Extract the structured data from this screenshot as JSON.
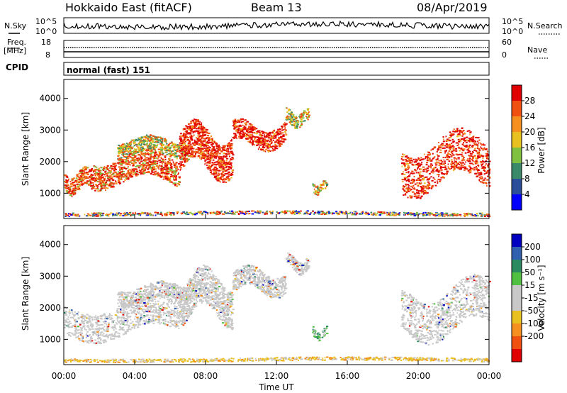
{
  "header": {
    "station_title": "Hokkaido East (fitACF)",
    "beam_label": "Beam 13",
    "date_label": "08/Apr/2019"
  },
  "summary_panels": {
    "nsky_label": "N.Sky",
    "nsky_ticks": [
      "10^5",
      "10^0"
    ],
    "nsearch_label": "N.Search",
    "nsearch_ticks": [
      "10^5",
      "10^0"
    ],
    "freq_label": "Freq.",
    "freq_unit": "[MHz]",
    "freq_ticks": [
      "18",
      "8"
    ],
    "nave_label": "Nave",
    "nave_ticks": [
      "60",
      "0"
    ],
    "cpid_label": "CPID",
    "cpid_value": "normal (fast) 151"
  },
  "colors": {
    "power_scale": [
      "#0000ff",
      "#2a4e9a",
      "#3a8a6a",
      "#80c040",
      "#e8c020",
      "#f59020",
      "#f05010",
      "#e00000"
    ],
    "velocity_scale": [
      "#0000c0",
      "#3060b0",
      "#2a8a60",
      "#50c040",
      "#c8c8c8",
      "#c8c8c8",
      "#e8c020",
      "#f59020",
      "#f05010",
      "#e00000"
    ]
  },
  "chart_data": [
    {
      "type": "heatmap",
      "title": "",
      "xlabel": "Time UT",
      "ylabel": "Slant Range [km]",
      "x_ticks": [
        "00:00",
        "04:00",
        "08:00",
        "12:00",
        "16:00",
        "20:00",
        "00:00"
      ],
      "y_ticks": [
        "1000",
        "2000",
        "3000",
        "4000"
      ],
      "xlim_hours": [
        0,
        24
      ],
      "ylim_km": [
        200,
        4600
      ],
      "colorbar": {
        "label": "Power [dB]",
        "ticks": [
          "4",
          "8",
          "12",
          "16",
          "20",
          "24",
          "28"
        ],
        "range": [
          0,
          32
        ]
      },
      "echo_regions": [
        {
          "t0": 0.0,
          "t1": 1.5,
          "r0": 1000,
          "r1": 1800,
          "level": "high"
        },
        {
          "t0": 1.5,
          "t1": 6.5,
          "r0": 1200,
          "r1": 2300,
          "level": "high"
        },
        {
          "t0": 3.0,
          "t1": 7.0,
          "r0": 2100,
          "r1": 2800,
          "level": "mid"
        },
        {
          "t0": 6.5,
          "t1": 9.5,
          "r0": 1500,
          "r1": 3200,
          "level": "very-high"
        },
        {
          "t0": 9.5,
          "t1": 12.5,
          "r0": 2400,
          "r1": 3300,
          "level": "very-high"
        },
        {
          "t0": 12.5,
          "t1": 13.8,
          "r0": 3100,
          "r1": 3700,
          "level": "mid"
        },
        {
          "t0": 14.0,
          "t1": 14.8,
          "r0": 1000,
          "r1": 1400,
          "level": "mid"
        },
        {
          "t0": 19.0,
          "t1": 24.0,
          "r0": 1000,
          "r1": 2900,
          "level": "very-high"
        },
        {
          "t0": 0.0,
          "t1": 24.0,
          "r0": 300,
          "r1": 450,
          "level": "low"
        }
      ]
    },
    {
      "type": "heatmap",
      "title": "",
      "xlabel": "Time UT",
      "ylabel": "Slant Range [km]",
      "x_ticks": [
        "00:00",
        "04:00",
        "08:00",
        "12:00",
        "16:00",
        "20:00",
        "00:00"
      ],
      "y_ticks": [
        "1000",
        "2000",
        "3000",
        "4000"
      ],
      "xlim_hours": [
        0,
        24
      ],
      "ylim_km": [
        200,
        4600
      ],
      "colorbar": {
        "label": "Velocity [m s⁻¹]",
        "ticks": [
          "200",
          "100",
          "50",
          "15",
          "-15",
          "-50",
          "-100",
          "-200"
        ],
        "range": [
          -250,
          250
        ]
      },
      "echo_regions": [
        {
          "t0": 0.0,
          "t1": 6.5,
          "r0": 1000,
          "r1": 2300,
          "level": "near-zero"
        },
        {
          "t0": 3.0,
          "t1": 7.0,
          "r0": 2100,
          "r1": 2800,
          "level": "near-zero"
        },
        {
          "t0": 6.5,
          "t1": 9.5,
          "r0": 1500,
          "r1": 3200,
          "level": "near-zero"
        },
        {
          "t0": 9.5,
          "t1": 12.5,
          "r0": 2400,
          "r1": 3300,
          "level": "near-zero"
        },
        {
          "t0": 12.5,
          "t1": 13.8,
          "r0": 3100,
          "r1": 3700,
          "level": "near-zero"
        },
        {
          "t0": 14.0,
          "t1": 14.8,
          "r0": 1000,
          "r1": 1400,
          "level": "positive"
        },
        {
          "t0": 19.0,
          "t1": 24.0,
          "r0": 1000,
          "r1": 2900,
          "level": "near-zero"
        },
        {
          "t0": 0.0,
          "t1": 24.0,
          "r0": 300,
          "r1": 450,
          "level": "negative"
        }
      ]
    }
  ]
}
